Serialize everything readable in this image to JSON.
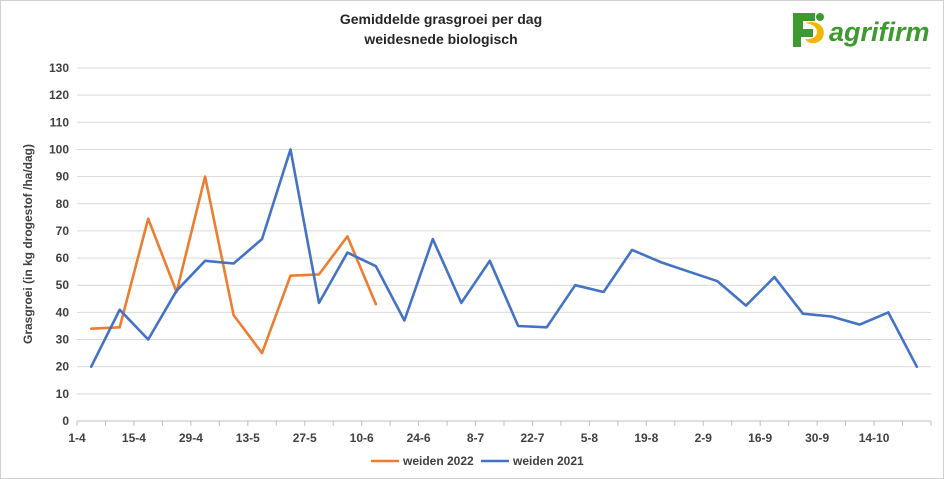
{
  "chart_data": {
    "type": "line",
    "title_lines": [
      "Gemiddelde grasgroei per dag",
      "weidesnede biologisch"
    ],
    "ylabel": "Grasgroei (in kg drogestof /ha/dag)",
    "xlabel": "",
    "ylim": [
      0,
      130
    ],
    "yticks": [
      0,
      10,
      20,
      30,
      40,
      50,
      60,
      70,
      80,
      90,
      100,
      110,
      120,
      130
    ],
    "x_tick_labels": [
      "1-4",
      "15-4",
      "29-4",
      "13-5",
      "27-5",
      "10-6",
      "24-6",
      "8-7",
      "22-7",
      "5-8",
      "19-8",
      "2-9",
      "16-9",
      "30-9",
      "14-10"
    ],
    "grid": true,
    "legend_position": "bottom",
    "series": [
      {
        "name": "weiden 2022",
        "color": "#ED7D31",
        "values": [
          34,
          34.5,
          74.5,
          47.5,
          90,
          39,
          25,
          53.5,
          54,
          68,
          43
        ]
      },
      {
        "name": "weiden 2021",
        "color": "#4472C4",
        "values": [
          20,
          41,
          30,
          48,
          59,
          58,
          67,
          100,
          43.5,
          62,
          57,
          37,
          67,
          43.5,
          59,
          35,
          34.5,
          50,
          47.5,
          63,
          58.5,
          55,
          51.5,
          42.5,
          53,
          39.5,
          38.5,
          35.5,
          40,
          20
        ]
      }
    ]
  },
  "logo": {
    "text": "agrifirm",
    "color_green": "#3d9a2e",
    "color_yellow": "#f2b705"
  }
}
